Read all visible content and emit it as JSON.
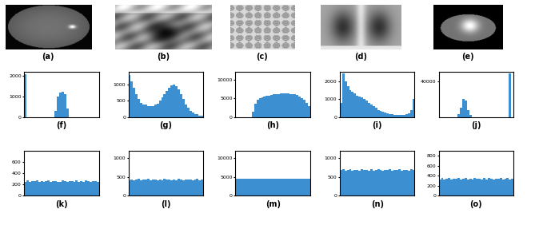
{
  "chart_data": [
    {
      "type": "image",
      "xlabel": "(a)"
    },
    {
      "type": "image",
      "xlabel": "(b)"
    },
    {
      "type": "image",
      "xlabel": "(c)"
    },
    {
      "type": "image",
      "xlabel": "(d)"
    },
    {
      "type": "image",
      "xlabel": "(e)"
    },
    {
      "type": "histogram",
      "xlabel": "(f)",
      "color": "#3c8fd0",
      "tick_labels": "y",
      "bins": [
        0,
        8,
        16,
        24,
        32,
        40,
        48,
        56,
        64,
        72,
        80,
        88,
        96,
        104,
        112,
        120,
        128,
        136,
        144,
        152,
        160,
        168,
        176,
        184,
        192,
        200,
        208,
        216,
        224,
        232,
        240,
        248,
        256
      ],
      "counts": [
        2100,
        0,
        0,
        0,
        0,
        0,
        0,
        0,
        0,
        0,
        0,
        0,
        0,
        300,
        1000,
        1200,
        1250,
        1100,
        400,
        0,
        0,
        0,
        0,
        0,
        0,
        0,
        0,
        0,
        0,
        0,
        0,
        0
      ],
      "xlim": [
        0,
        256
      ],
      "ylim": [
        0,
        2200
      ],
      "yticks": [
        0,
        1000,
        2000
      ]
    },
    {
      "type": "histogram",
      "xlabel": "(g)",
      "color": "#3c8fd0",
      "tick_labels": "y",
      "bins": [
        0,
        8,
        16,
        24,
        32,
        40,
        48,
        56,
        64,
        72,
        80,
        88,
        96,
        104,
        112,
        120,
        128,
        136,
        144,
        152,
        160,
        168,
        176,
        184,
        192,
        200,
        208,
        216,
        224,
        232,
        240,
        248,
        256
      ],
      "counts": [
        1300,
        1100,
        900,
        700,
        550,
        450,
        400,
        380,
        350,
        340,
        350,
        380,
        420,
        500,
        600,
        700,
        800,
        900,
        980,
        1000,
        950,
        850,
        700,
        550,
        400,
        300,
        200,
        150,
        100,
        80,
        50,
        30
      ],
      "xlim": [
        0,
        256
      ],
      "ylim": [
        0,
        1400
      ],
      "yticks": [
        0,
        500,
        1000
      ]
    },
    {
      "type": "histogram",
      "xlabel": "(h)",
      "color": "#3c8fd0",
      "tick_labels": "y",
      "bins": [
        0,
        8,
        16,
        24,
        32,
        40,
        48,
        56,
        64,
        72,
        80,
        88,
        96,
        104,
        112,
        120,
        128,
        136,
        144,
        152,
        160,
        168,
        176,
        184,
        192,
        200,
        208,
        216,
        224,
        232,
        240,
        248,
        256
      ],
      "counts": [
        0,
        0,
        0,
        0,
        0,
        0,
        0,
        1500,
        3500,
        4500,
        5000,
        5300,
        5500,
        5600,
        5700,
        5900,
        6000,
        6100,
        6200,
        6300,
        6300,
        6400,
        6300,
        6200,
        6100,
        6000,
        5800,
        5500,
        5000,
        4500,
        3800,
        3000
      ],
      "xlim": [
        0,
        256
      ],
      "ylim": [
        0,
        12000
      ],
      "yticks": [
        0,
        5000,
        10000
      ]
    },
    {
      "type": "histogram",
      "xlabel": "(i)",
      "color": "#3c8fd0",
      "tick_labels": "y",
      "bins": [
        0,
        8,
        16,
        24,
        32,
        40,
        48,
        56,
        64,
        72,
        80,
        88,
        96,
        104,
        112,
        120,
        128,
        136,
        144,
        152,
        160,
        168,
        176,
        184,
        192,
        200,
        208,
        216,
        224,
        232,
        240,
        248,
        256
      ],
      "counts": [
        800,
        2400,
        2000,
        1700,
        1500,
        1400,
        1300,
        1200,
        1150,
        1100,
        1000,
        900,
        800,
        700,
        600,
        500,
        400,
        350,
        300,
        250,
        200,
        180,
        150,
        120,
        100,
        100,
        100,
        120,
        150,
        200,
        400,
        1000
      ],
      "xlim": [
        0,
        256
      ],
      "ylim": [
        0,
        2500
      ],
      "yticks": [
        0,
        1000,
        2000
      ]
    },
    {
      "type": "histogram",
      "xlabel": "(j)",
      "color": "#3c8fd0",
      "tick_labels": "y",
      "bins": [
        0,
        8,
        16,
        24,
        32,
        40,
        48,
        56,
        64,
        72,
        80,
        88,
        96,
        104,
        112,
        120,
        128,
        136,
        144,
        152,
        160,
        168,
        176,
        184,
        192,
        200,
        208,
        216,
        224,
        232,
        240,
        248,
        256
      ],
      "counts": [
        0,
        0,
        0,
        0,
        0,
        0,
        0,
        0,
        3000,
        10000,
        20000,
        18000,
        8000,
        2000,
        0,
        0,
        0,
        0,
        0,
        0,
        0,
        0,
        0,
        0,
        0,
        0,
        0,
        0,
        0,
        0,
        48000,
        0
      ],
      "xlim": [
        0,
        256
      ],
      "ylim": [
        0,
        50000
      ],
      "yticks": [
        40000
      ]
    },
    {
      "type": "histogram",
      "xlabel": "(k)",
      "color": "#3c8fd0",
      "tick_labels": "y",
      "bins": [
        0,
        8,
        16,
        24,
        32,
        40,
        48,
        56,
        64,
        72,
        80,
        88,
        96,
        104,
        112,
        120,
        128,
        136,
        144,
        152,
        160,
        168,
        176,
        184,
        192,
        200,
        208,
        216,
        224,
        232,
        240,
        248,
        256
      ],
      "counts": [
        250,
        270,
        240,
        260,
        255,
        275,
        245,
        265,
        250,
        260,
        270,
        240,
        255,
        265,
        250,
        245,
        270,
        260,
        250,
        255,
        265,
        240,
        275,
        250,
        260,
        245,
        270,
        255,
        250,
        265,
        260,
        248
      ],
      "xlim": [
        0,
        256
      ],
      "ylim": [
        0,
        800
      ],
      "yticks": [
        0,
        200,
        400,
        600
      ]
    },
    {
      "type": "histogram",
      "xlabel": "(l)",
      "color": "#3c8fd0",
      "tick_labels": "y",
      "bins": [
        0,
        8,
        16,
        24,
        32,
        40,
        48,
        56,
        64,
        72,
        80,
        88,
        96,
        104,
        112,
        120,
        128,
        136,
        144,
        152,
        160,
        168,
        176,
        184,
        192,
        200,
        208,
        216,
        224,
        232,
        240,
        248,
        256
      ],
      "counts": [
        420,
        440,
        410,
        430,
        450,
        415,
        435,
        425,
        445,
        410,
        430,
        440,
        420,
        435,
        415,
        450,
        425,
        430,
        410,
        440,
        420,
        445,
        430,
        415,
        435,
        425,
        440,
        410,
        430,
        445,
        420,
        435
      ],
      "xlim": [
        0,
        256
      ],
      "ylim": [
        0,
        1200
      ],
      "yticks": [
        0,
        500,
        1000
      ]
    },
    {
      "type": "histogram",
      "xlabel": "(m)",
      "color": "#3c8fd0",
      "tick_labels": "y",
      "bins": [
        0,
        8,
        16,
        24,
        32,
        40,
        48,
        56,
        64,
        72,
        80,
        88,
        96,
        104,
        112,
        120,
        128,
        136,
        144,
        152,
        160,
        168,
        176,
        184,
        192,
        200,
        208,
        216,
        224,
        232,
        240,
        248,
        256
      ],
      "counts": [
        4500,
        4550,
        4480,
        4520,
        4500,
        4530,
        4470,
        4510,
        4500,
        4540,
        4490,
        4520,
        4500,
        4510,
        4480,
        4530,
        4500,
        4520,
        4490,
        4510,
        4500,
        4540,
        4470,
        4520,
        4500,
        4510,
        4490,
        4530,
        4500,
        4520,
        4480,
        4500
      ],
      "xlim": [
        0,
        256
      ],
      "ylim": [
        0,
        12000
      ],
      "yticks": [
        0,
        5000,
        10000
      ]
    },
    {
      "type": "histogram",
      "xlabel": "(n)",
      "color": "#3c8fd0",
      "tick_labels": "y",
      "bins": [
        0,
        8,
        16,
        24,
        32,
        40,
        48,
        56,
        64,
        72,
        80,
        88,
        96,
        104,
        112,
        120,
        128,
        136,
        144,
        152,
        160,
        168,
        176,
        184,
        192,
        200,
        208,
        216,
        224,
        232,
        240,
        248,
        256
      ],
      "counts": [
        680,
        700,
        660,
        690,
        710,
        670,
        685,
        695,
        665,
        705,
        680,
        690,
        675,
        700,
        660,
        690,
        710,
        680,
        670,
        695,
        685,
        700,
        665,
        690,
        680,
        705,
        670,
        690,
        685,
        675,
        700,
        680
      ],
      "xlim": [
        0,
        256
      ],
      "ylim": [
        0,
        1200
      ],
      "yticks": [
        0,
        500,
        1000
      ]
    },
    {
      "type": "histogram",
      "xlabel": "(o)",
      "color": "#3c8fd0",
      "tick_labels": "y",
      "bins": [
        0,
        8,
        16,
        24,
        32,
        40,
        48,
        56,
        64,
        72,
        80,
        88,
        96,
        104,
        112,
        120,
        128,
        136,
        144,
        152,
        160,
        168,
        176,
        184,
        192,
        200,
        208,
        216,
        224,
        232,
        240,
        248,
        256
      ],
      "counts": [
        330,
        350,
        320,
        340,
        355,
        325,
        345,
        335,
        360,
        320,
        340,
        350,
        330,
        345,
        325,
        355,
        335,
        340,
        320,
        350,
        330,
        355,
        340,
        325,
        345,
        335,
        350,
        320,
        340,
        355,
        330,
        345
      ],
      "xlim": [
        0,
        256
      ],
      "ylim": [
        0,
        900
      ],
      "yticks": [
        0,
        200,
        400,
        600,
        800
      ]
    }
  ]
}
